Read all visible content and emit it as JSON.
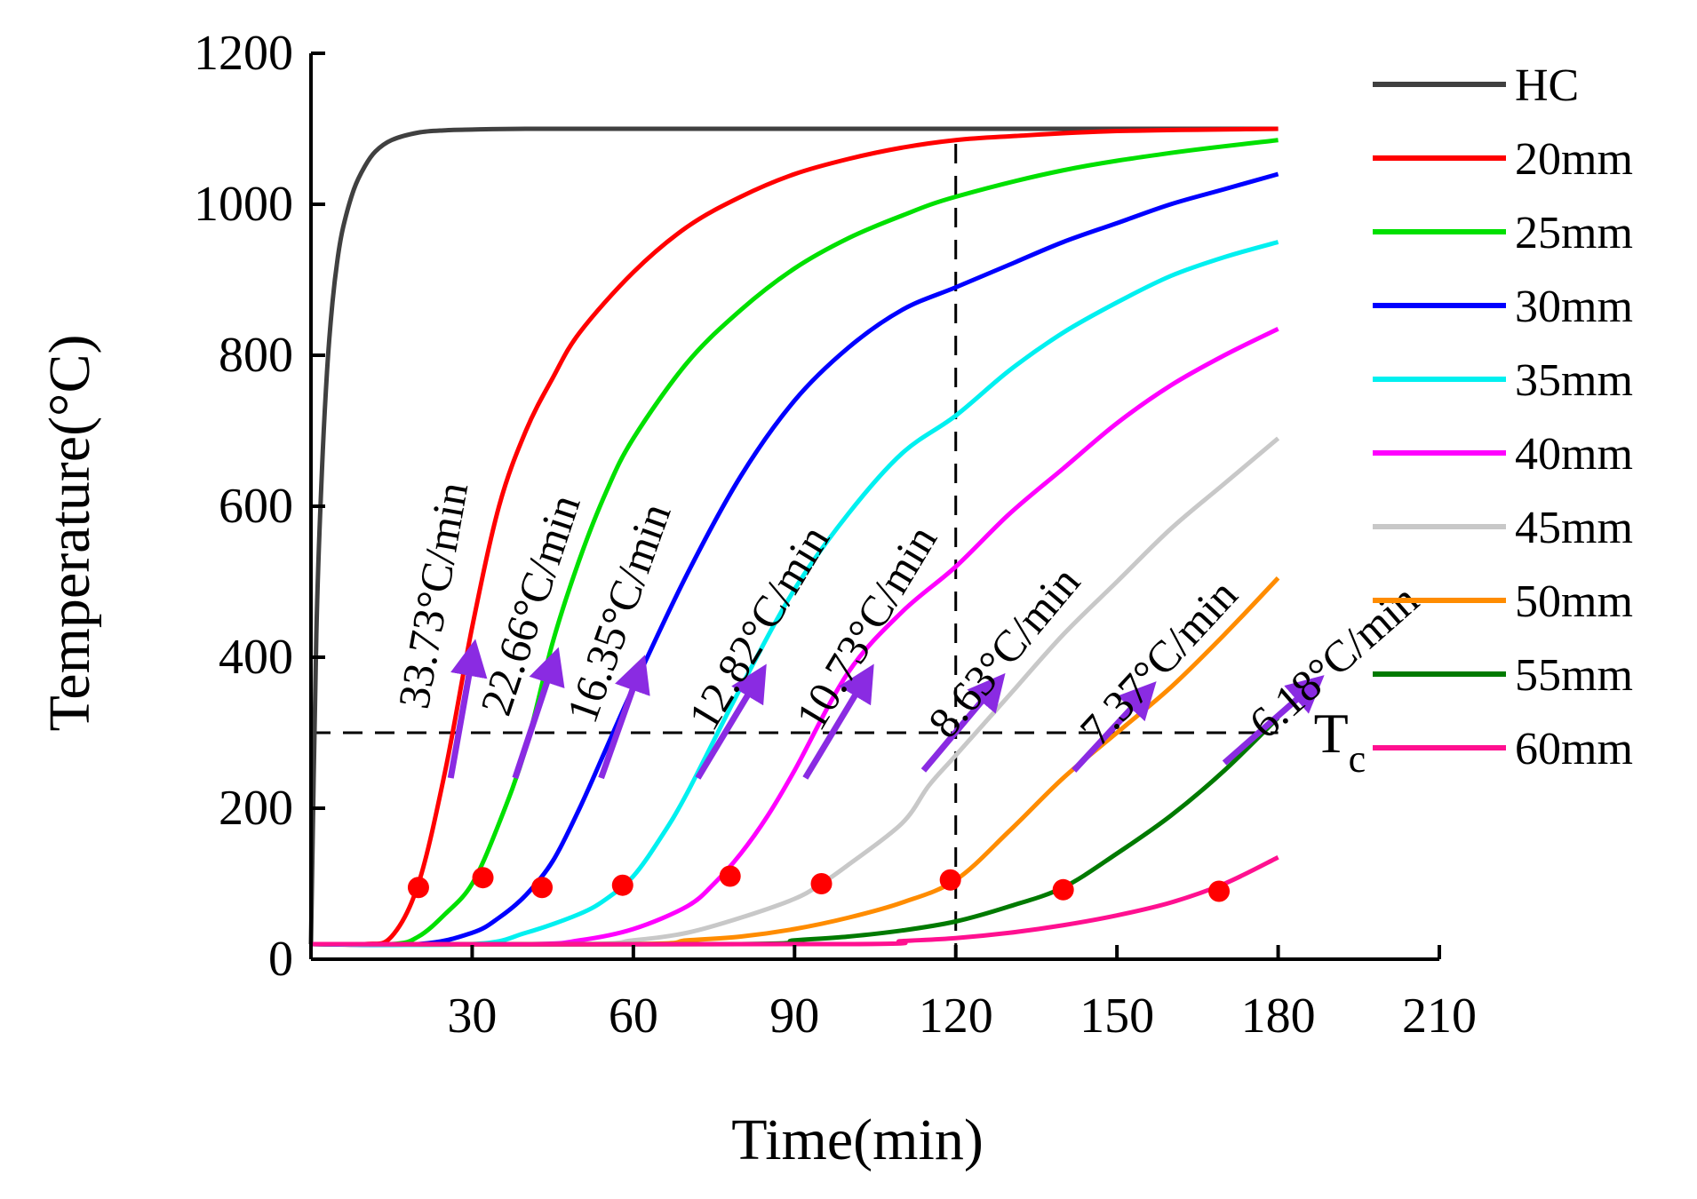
{
  "chart_data": {
    "type": "line",
    "title": "",
    "xlabel": "Time(min)",
    "ylabel": "Temperature(°C)",
    "xlim": [
      0,
      210
    ],
    "ylim": [
      0,
      1200
    ],
    "xticks": [
      30,
      60,
      90,
      120,
      150,
      180,
      210
    ],
    "yticks": [
      0,
      200,
      400,
      600,
      800,
      1000,
      1200
    ],
    "legend_position": "right",
    "series": [
      {
        "name": "HC",
        "color": "#404040",
        "x": [
          0,
          1,
          2,
          3,
          4,
          5,
          6,
          8,
          10,
          12,
          15,
          20,
          25,
          30,
          40,
          60,
          90,
          120,
          150,
          180
        ],
        "y": [
          20,
          430,
          640,
          780,
          870,
          930,
          970,
          1020,
          1050,
          1070,
          1085,
          1095,
          1098,
          1099,
          1100,
          1100,
          1100,
          1100,
          1100,
          1100
        ],
        "marker": null
      },
      {
        "name": "20mm",
        "color": "#ff0000",
        "x": [
          0,
          10,
          15,
          20,
          25,
          30,
          35,
          40,
          45,
          50,
          60,
          70,
          80,
          90,
          100,
          110,
          120,
          130,
          150,
          180
        ],
        "y": [
          20,
          20,
          30,
          100,
          250,
          440,
          600,
          700,
          770,
          830,
          910,
          970,
          1010,
          1040,
          1060,
          1075,
          1085,
          1090,
          1097,
          1100
        ],
        "marker": [
          20,
          95
        ]
      },
      {
        "name": "25mm",
        "color": "#00e000",
        "x": [
          0,
          15,
          20,
          25,
          30,
          35,
          40,
          45,
          50,
          55,
          60,
          70,
          80,
          90,
          100,
          110,
          120,
          140,
          160,
          180
        ],
        "y": [
          20,
          20,
          30,
          60,
          100,
          180,
          280,
          420,
          530,
          620,
          690,
          790,
          860,
          915,
          955,
          985,
          1010,
          1045,
          1068,
          1085
        ],
        "marker": [
          32,
          108
        ]
      },
      {
        "name": "30mm",
        "color": "#0000ff",
        "x": [
          0,
          20,
          30,
          35,
          40,
          45,
          50,
          55,
          60,
          70,
          80,
          90,
          100,
          110,
          120,
          130,
          140,
          150,
          160,
          170,
          180
        ],
        "y": [
          20,
          20,
          35,
          55,
          85,
          130,
          200,
          280,
          360,
          510,
          640,
          740,
          810,
          860,
          890,
          920,
          950,
          975,
          1000,
          1020,
          1040
        ],
        "marker": [
          43,
          95
        ]
      },
      {
        "name": "35mm",
        "color": "#00f0f0",
        "x": [
          0,
          30,
          40,
          50,
          55,
          60,
          65,
          70,
          80,
          90,
          100,
          110,
          120,
          130,
          140,
          150,
          160,
          170,
          180
        ],
        "y": [
          20,
          20,
          35,
          60,
          80,
          110,
          160,
          220,
          360,
          490,
          590,
          670,
          720,
          780,
          830,
          870,
          905,
          930,
          950
        ],
        "marker": [
          58,
          98
        ]
      },
      {
        "name": "40mm",
        "color": "#ff00ff",
        "x": [
          0,
          40,
          50,
          60,
          70,
          75,
          80,
          85,
          90,
          100,
          110,
          120,
          130,
          140,
          150,
          160,
          170,
          180
        ],
        "y": [
          20,
          20,
          25,
          40,
          70,
          100,
          140,
          190,
          250,
          380,
          460,
          520,
          590,
          650,
          710,
          760,
          800,
          835
        ],
        "marker": [
          78,
          110
        ]
      },
      {
        "name": "45mm",
        "color": "#c8c8c8",
        "x": [
          0,
          50,
          60,
          70,
          80,
          90,
          95,
          100,
          110,
          115,
          120,
          130,
          140,
          150,
          160,
          170,
          180
        ],
        "y": [
          20,
          20,
          25,
          35,
          55,
          80,
          100,
          125,
          180,
          230,
          270,
          350,
          430,
          500,
          570,
          630,
          690
        ],
        "marker": [
          95,
          100
        ]
      },
      {
        "name": "50mm",
        "color": "#ff8c00",
        "x": [
          0,
          60,
          70,
          80,
          90,
          100,
          110,
          120,
          130,
          140,
          150,
          160,
          170,
          180
        ],
        "y": [
          20,
          20,
          25,
          30,
          40,
          55,
          75,
          105,
          170,
          240,
          300,
          360,
          430,
          505
        ],
        "marker": [
          119,
          105
        ]
      },
      {
        "name": "55mm",
        "color": "#007a00",
        "x": [
          0,
          80,
          90,
          100,
          110,
          120,
          130,
          140,
          150,
          160,
          170,
          180
        ],
        "y": [
          20,
          20,
          25,
          30,
          38,
          50,
          70,
          95,
          140,
          190,
          250,
          320
        ],
        "marker": [
          140,
          92
        ]
      },
      {
        "name": "60mm",
        "color": "#ff1090",
        "x": [
          0,
          100,
          110,
          120,
          130,
          140,
          150,
          160,
          170,
          180
        ],
        "y": [
          20,
          20,
          24,
          28,
          35,
          45,
          58,
          75,
          100,
          135
        ],
        "marker": [
          169,
          90
        ]
      }
    ],
    "reference_lines": [
      {
        "orientation": "horizontal",
        "value": 300,
        "style": "dashed",
        "label": "T",
        "label_subscript": "c"
      },
      {
        "orientation": "vertical",
        "value": 120,
        "style": "dashed"
      }
    ],
    "annotations": [
      {
        "text": "33.73°C/min",
        "series": "20mm",
        "arrow_from": [
          26,
          240
        ],
        "arrow_to": [
          30,
          400
        ]
      },
      {
        "text": "22.66°C/min",
        "series": "25mm",
        "arrow_from": [
          38,
          240
        ],
        "arrow_to": [
          45,
          390
        ]
      },
      {
        "text": "16.35°C/min",
        "series": "30mm",
        "arrow_from": [
          54,
          240
        ],
        "arrow_to": [
          61,
          380
        ]
      },
      {
        "text": "12.82°C/min",
        "series": "35mm",
        "arrow_from": [
          72,
          240
        ],
        "arrow_to": [
          83,
          370
        ]
      },
      {
        "text": "10.73°C/min",
        "series": "40mm",
        "arrow_from": [
          92,
          240
        ],
        "arrow_to": [
          103,
          370
        ]
      },
      {
        "text": "8.63°C/min",
        "series": "45mm",
        "arrow_from": [
          114,
          250
        ],
        "arrow_to": [
          127,
          360
        ]
      },
      {
        "text": "7.37°C/min",
        "series": "50mm",
        "arrow_from": [
          142,
          250
        ],
        "arrow_to": [
          155,
          350
        ]
      },
      {
        "text": "6.18°C/min",
        "series": "55mm",
        "arrow_from": [
          170,
          260
        ],
        "arrow_to": [
          186,
          360
        ]
      }
    ]
  }
}
